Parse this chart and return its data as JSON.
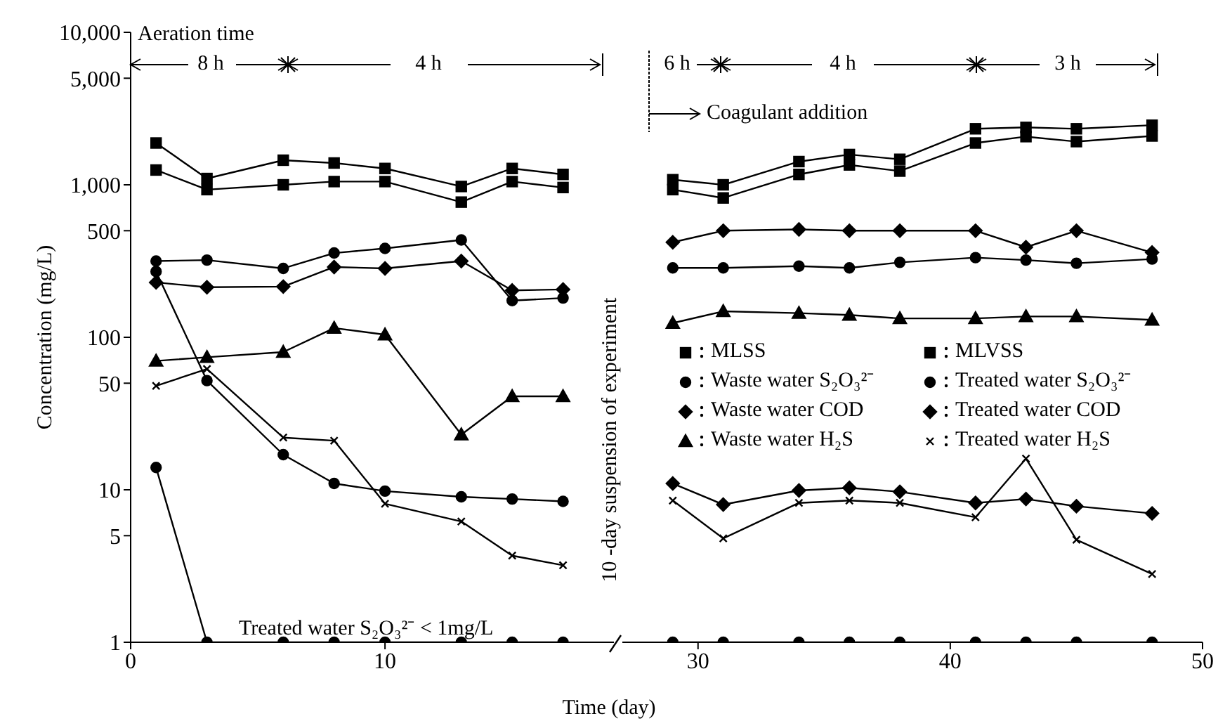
{
  "chart_data": [
    {
      "type": "line",
      "ylabel": "Concentration (mg/L)",
      "xlabel": "Time (day)",
      "log": true,
      "legend": false,
      "line_style": "solid",
      "x": [
        1,
        3,
        6,
        8,
        10,
        13,
        15,
        17
      ],
      "xlim": [
        0,
        19
      ],
      "xticks": [
        0,
        10
      ],
      "ylim": [
        1,
        10000
      ],
      "yticks": [
        1,
        5,
        10,
        50,
        100,
        500,
        {
          "value": 1000,
          "label": "1,000"
        },
        {
          "value": 5000,
          "label": "5,000"
        },
        {
          "value": 10000,
          "label": "10,000"
        }
      ],
      "annotations": [
        "Aeration time",
        "8 h",
        "4 h",
        "Treated water S₂O₃²⁻  < 1mg/L"
      ],
      "series": [
        {
          "color": "#000000",
          "marker": "square",
          "values": [
            1880,
            1100,
            1450,
            1390,
            1280,
            975,
            1280,
            1170
          ]
        },
        {
          "color": "#000000",
          "marker": "square",
          "values": [
            1250,
            930,
            1000,
            1050,
            1050,
            770,
            1050,
            960
          ]
        },
        {
          "color": "#000000",
          "marker": "circle",
          "values": [
            316,
            321,
            283,
            357,
            383,
            435,
            174,
            181
          ]
        },
        {
          "color": "#000000",
          "marker": "circle",
          "values": [
            14,
            1,
            1,
            1,
            1,
            1,
            1,
            1
          ]
        },
        {
          "color": "#000000",
          "marker": "diamond",
          "values": [
            229,
            213,
            215,
            289,
            283,
            316,
            203,
            206
          ]
        },
        {
          "color": "#000000",
          "marker": "circle",
          "values": [
            270,
            52,
            17,
            11,
            9.8,
            9,
            8.7,
            8.4
          ]
        },
        {
          "color": "#000000",
          "marker": "triangle",
          "values": [
            70,
            74,
            80,
            115,
            104,
            23,
            41,
            41
          ]
        },
        {
          "color": "#000000",
          "marker": "cross",
          "values": [
            48,
            62,
            22,
            21,
            8.1,
            6.2,
            3.7,
            3.2
          ]
        }
      ]
    },
    {
      "type": "line",
      "log": true,
      "legend": "right",
      "line_style": "solid",
      "tick_labels": "x",
      "x": [
        29,
        31,
        34,
        36,
        38,
        41,
        43,
        45,
        48
      ],
      "xlim": [
        27,
        50
      ],
      "xticks": [
        30,
        40,
        50
      ],
      "ylim": [
        1,
        10000
      ],
      "annotations": [
        "6 h",
        "4 h",
        "3 h",
        "Coagulant addition",
        "10 -day suspension of experiment"
      ],
      "series": [
        {
          "name": "MLSS",
          "color": "#000000",
          "marker": "square",
          "values": [
            1080,
            1000,
            1420,
            1580,
            1470,
            2330,
            2380,
            2330,
            2460
          ]
        },
        {
          "name": "MLVSS",
          "color": "#000000",
          "marker": "square",
          "values": [
            930,
            820,
            1170,
            1350,
            1230,
            1880,
            2070,
            1920,
            2090
          ]
        },
        {
          "name": "Waste water S₂O₃²⁻",
          "color": "#000000",
          "marker": "circle",
          "values": [
            285,
            285,
            293,
            285,
            310,
            333,
            321,
            306,
            326
          ]
        },
        {
          "name": "Treated water S₂O₃²⁻",
          "color": "#000000",
          "marker": "circle",
          "values": [
            1,
            1,
            1,
            1,
            1,
            1,
            1,
            1,
            1
          ]
        },
        {
          "name": "Waste water COD",
          "color": "#000000",
          "marker": "diamond",
          "values": [
            420,
            500,
            510,
            500,
            500,
            500,
            390,
            500,
            360
          ]
        },
        {
          "name": "Treated water COD",
          "color": "#000000",
          "marker": "diamond",
          "values": [
            11,
            8,
            9.9,
            10.3,
            9.7,
            8.2,
            8.7,
            7.8,
            7
          ]
        },
        {
          "name": "Waste water H₂S",
          "color": "#000000",
          "marker": "triangle",
          "values": [
            124,
            148,
            144,
            140,
            133,
            133,
            137,
            137,
            130
          ]
        },
        {
          "name": "Treated water H₂S",
          "color": "#000000",
          "marker": "cross",
          "values": [
            8.5,
            4.8,
            8.2,
            8.5,
            8.2,
            6.6,
            16,
            4.7,
            2.8
          ]
        }
      ]
    }
  ]
}
